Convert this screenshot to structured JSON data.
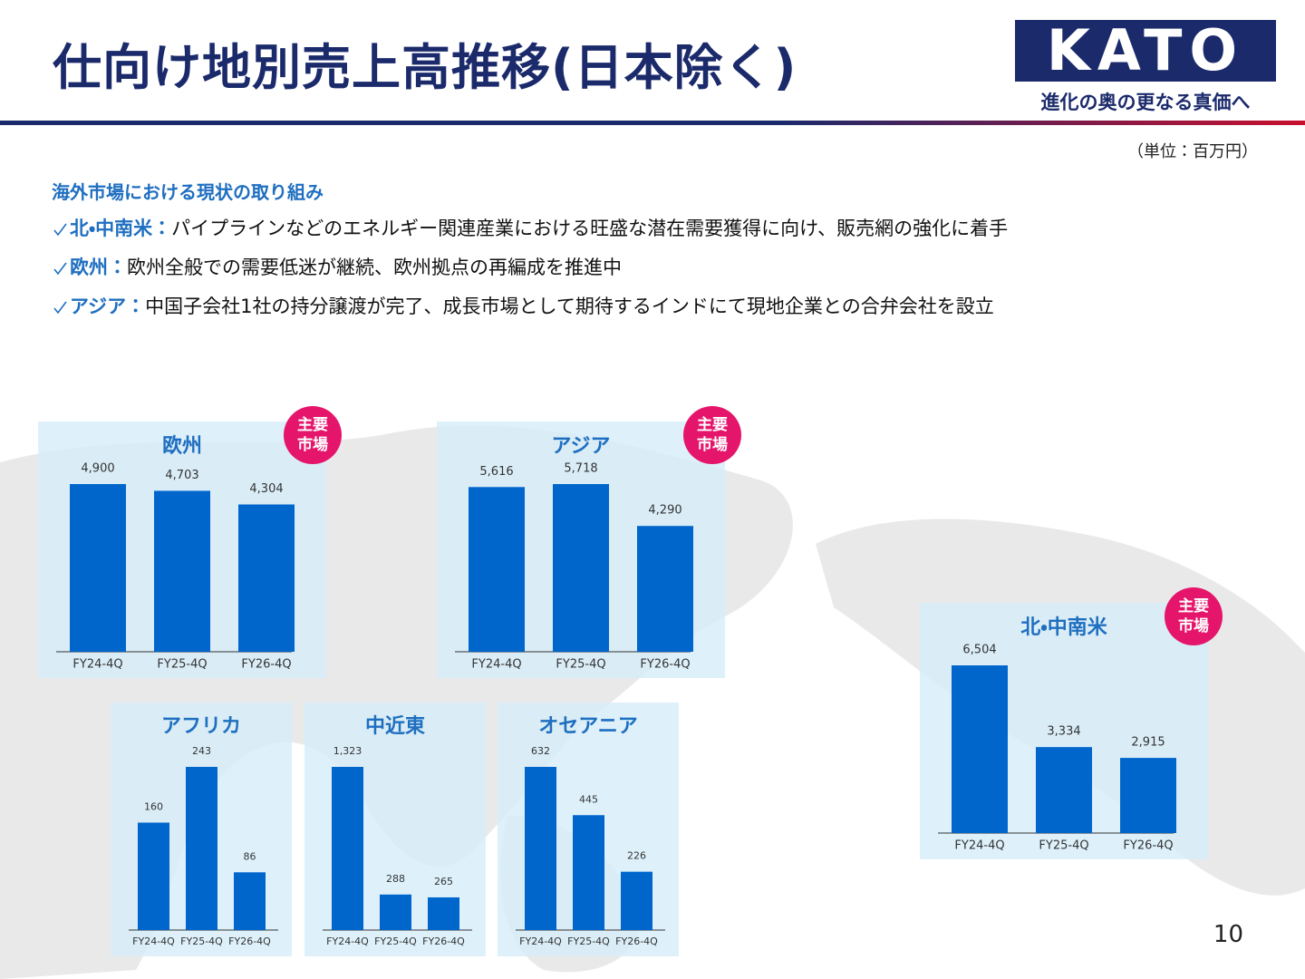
{
  "header": {
    "title": "仕向け地別売上高推移(日本除く)",
    "logo": "KATO",
    "tagline": "進化の奥の更なる真価へ",
    "unit": "（単位：百万円）"
  },
  "section": {
    "heading": "海外市場における現状の取り組み",
    "bullets": [
      {
        "label": "北・中南米：",
        "text": "パイプラインなどのエネルギー関連産業における旺盛な潜在需要獲得に向け、販売網の強化に着手"
      },
      {
        "label": "欧州：",
        "text": "欧州全般での需要低迷が継続、欧州拠点の再編成を推進中"
      },
      {
        "label": "アジア：",
        "text": "中国子会社1社の持分譲渡が完了、成長市場として期待するインドにて現地企業との合弁会社を設立"
      }
    ]
  },
  "page_number": "10",
  "chart_data": [
    {
      "type": "bar",
      "title": "欧州",
      "badge": "主要市場",
      "color": "#0066cc",
      "categories": [
        "FY24-4Q",
        "FY25-4Q",
        "FY26-4Q"
      ],
      "values": [
        4900,
        4703,
        4304
      ],
      "value_labels": [
        "4,900",
        "4,703",
        "4,304"
      ]
    },
    {
      "type": "bar",
      "title": "アジア",
      "badge": "主要市場",
      "color": "#0066cc",
      "categories": [
        "FY24-4Q",
        "FY25-4Q",
        "FY26-4Q"
      ],
      "values": [
        5616,
        5718,
        4290
      ],
      "value_labels": [
        "5,616",
        "5,718",
        "4,290"
      ]
    },
    {
      "type": "bar",
      "title": "北・中南米",
      "badge": "主要市場",
      "color": "#0066cc",
      "categories": [
        "FY24-4Q",
        "FY25-4Q",
        "FY26-4Q"
      ],
      "values": [
        6504,
        3334,
        2915
      ],
      "value_labels": [
        "6,504",
        "3,334",
        "2,915"
      ]
    },
    {
      "type": "bar",
      "title": "アフリカ",
      "color": "#0066cc",
      "categories": [
        "FY24-4Q",
        "FY25-4Q",
        "FY26-4Q"
      ],
      "values": [
        160,
        243,
        86
      ]
    },
    {
      "type": "bar",
      "title": "中近東",
      "color": "#0066cc",
      "categories": [
        "FY24-4Q",
        "FY25-4Q",
        "FY26-4Q"
      ],
      "values": [
        1323,
        288,
        265
      ],
      "value_labels": [
        "1,323",
        "288",
        "265"
      ]
    },
    {
      "type": "bar",
      "title": "オセアニア",
      "color": "#0066cc",
      "categories": [
        "FY24-4Q",
        "FY25-4Q",
        "FY26-4Q"
      ],
      "values": [
        632,
        445,
        226
      ]
    }
  ]
}
